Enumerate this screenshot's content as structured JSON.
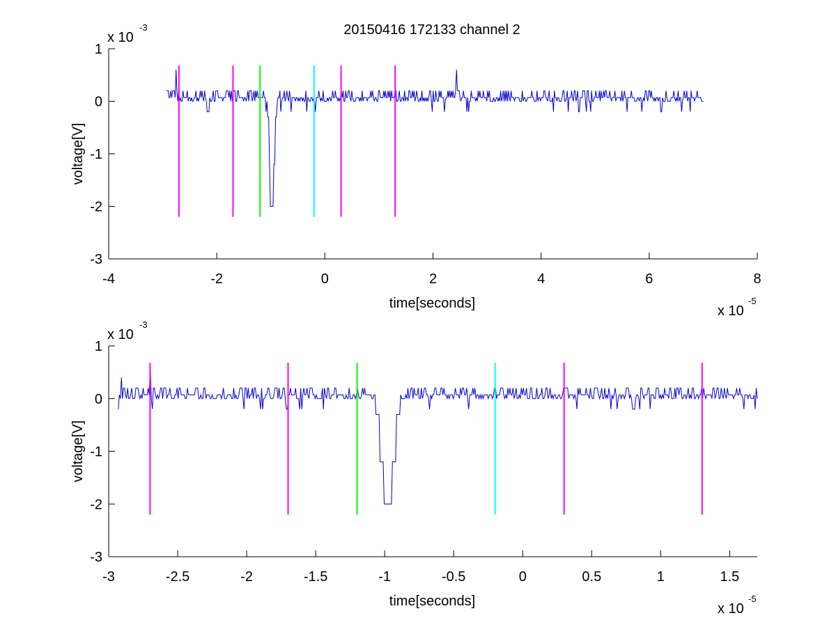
{
  "figure": {
    "title": "20150416 172133 channel 2"
  },
  "chart_data": [
    {
      "type": "line",
      "title": "20150416 172133 channel 2",
      "xlabel": "time[seconds]",
      "ylabel": "voltage[V]",
      "x_exponent_label": "x 10",
      "x_exponent": "-5",
      "y_exponent_label": "x 10",
      "y_exponent": "-3",
      "xlim": [
        -4,
        8
      ],
      "ylim": [
        -3,
        1
      ],
      "xticks": [
        -4,
        -2,
        0,
        2,
        4,
        6,
        8
      ],
      "xtick_labels": [
        "-4",
        "-2",
        "0",
        "2",
        "4",
        "6",
        "8"
      ],
      "yticks": [
        1,
        0,
        -1,
        -2,
        -3
      ],
      "ytick_labels": [
        "1",
        "0",
        "-1",
        "-2",
        "-3"
      ],
      "grid": false,
      "series": [
        {
          "color": "#0000cc",
          "x_start": -2.93,
          "x_end": 7.0,
          "baseline": 0.07,
          "noise_levels": [
            0.0,
            0.07,
            0.2
          ],
          "dip": {
            "x": -0.98,
            "y_min": -2.0
          },
          "spikes": [
            {
              "x": -2.75,
              "y": 0.6
            },
            {
              "x": 2.43,
              "y": 0.6
            }
          ]
        }
      ],
      "markers": [
        {
          "x": -2.7,
          "y_top": 0.68,
          "y_bottom": -2.2,
          "color": "#ff00ff"
        },
        {
          "x": -1.7,
          "y_top": 0.68,
          "y_bottom": -2.2,
          "color": "#ff00ff"
        },
        {
          "x": -1.2,
          "y_top": 0.68,
          "y_bottom": -2.2,
          "color": "#00ff00"
        },
        {
          "x": -0.2,
          "y_top": 0.68,
          "y_bottom": -2.2,
          "color": "#00ffff"
        },
        {
          "x": 0.3,
          "y_top": 0.68,
          "y_bottom": -2.2,
          "color": "#ff00ff"
        },
        {
          "x": 1.3,
          "y_top": 0.68,
          "y_bottom": -2.2,
          "color": "#ff00ff"
        }
      ]
    },
    {
      "type": "line",
      "xlabel": "time[seconds]",
      "ylabel": "voltage[V]",
      "x_exponent_label": "x 10",
      "x_exponent": "-5",
      "y_exponent_label": "x 10",
      "y_exponent": "-3",
      "xlim": [
        -3,
        1.7
      ],
      "ylim": [
        -3,
        1
      ],
      "xticks": [
        -3,
        -2.5,
        -2,
        -1.5,
        -1,
        -0.5,
        0,
        0.5,
        1,
        1.5
      ],
      "xtick_labels": [
        "-3",
        "-2.5",
        "-2",
        "-1.5",
        "-1",
        "-0.5",
        "0",
        "0.5",
        "1",
        "1.5"
      ],
      "yticks": [
        1,
        0,
        -1,
        -2,
        -3
      ],
      "ytick_labels": [
        "1",
        "0",
        "-1",
        "-2",
        "-3"
      ],
      "grid": false,
      "series": [
        {
          "color": "#0000cc",
          "x_start": -2.93,
          "x_end": 1.7,
          "baseline": 0.07,
          "noise_levels": [
            0.0,
            0.07,
            0.2
          ],
          "dip": {
            "x": -0.98,
            "y_min": -2.0
          },
          "spikes": [
            {
              "x": -2.7,
              "y": 0.6
            },
            {
              "x": -2.91,
              "y": 0.4
            }
          ]
        }
      ],
      "markers": [
        {
          "x": -2.7,
          "y_top": 0.68,
          "y_bottom": -2.2,
          "color": "#ff00ff"
        },
        {
          "x": -1.7,
          "y_top": 0.68,
          "y_bottom": -2.2,
          "color": "#ff00ff"
        },
        {
          "x": -1.2,
          "y_top": 0.68,
          "y_bottom": -2.2,
          "color": "#00ff00"
        },
        {
          "x": -0.2,
          "y_top": 0.68,
          "y_bottom": -2.2,
          "color": "#00ffff"
        },
        {
          "x": 0.3,
          "y_top": 0.68,
          "y_bottom": -2.2,
          "color": "#ff00ff"
        },
        {
          "x": 1.3,
          "y_top": 0.68,
          "y_bottom": -2.2,
          "color": "#ff00ff"
        }
      ]
    }
  ]
}
